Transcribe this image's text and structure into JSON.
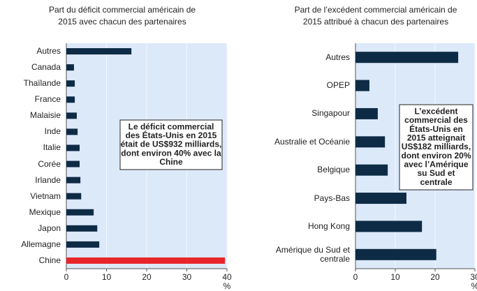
{
  "chart_data": [
    {
      "type": "bar",
      "orientation": "horizontal",
      "title": [
        "Part du déficit commercial américain de",
        "2015 avec chacun des partenaires"
      ],
      "categories": [
        "Autres",
        "Canada",
        "Thaïlande",
        "France",
        "Malaisie",
        "Inde",
        "Italie",
        "Corée",
        "Irlande",
        "Vietnam",
        "Mexique",
        "Japon",
        "Allemagne",
        "Chine"
      ],
      "values": [
        16.2,
        1.9,
        2.1,
        2.1,
        2.6,
        2.8,
        3.3,
        3.3,
        3.5,
        3.7,
        6.8,
        7.7,
        8.2,
        39.5
      ],
      "colors": [
        "#0d2b45",
        "#0d2b45",
        "#0d2b45",
        "#0d2b45",
        "#0d2b45",
        "#0d2b45",
        "#0d2b45",
        "#0d2b45",
        "#0d2b45",
        "#0d2b45",
        "#0d2b45",
        "#0d2b45",
        "#0d2b45",
        "#e8262a"
      ],
      "xlim": [
        0,
        40
      ],
      "xticks": [
        0,
        10,
        20,
        30,
        40
      ],
      "x_unit": "%",
      "grid": true,
      "annotation": [
        "Le déficit commercial",
        "des États-Unis en 2015",
        "était de US$932 milliards,",
        "dont environ 40% avec la",
        "Chine"
      ]
    },
    {
      "type": "bar",
      "orientation": "horizontal",
      "title": [
        "Part de l’excédent commercial américain de",
        "2015 attribué à chacun des partenaires"
      ],
      "categories": [
        "Autres",
        "OPEP",
        "Singapour",
        "Australie et Océanie",
        "Belgique",
        "Pays-Bas",
        "Hong Kong",
        "Amérique du Sud et centrale"
      ],
      "values": [
        25.8,
        3.5,
        5.6,
        7.4,
        8.1,
        12.8,
        16.7,
        20.3
      ],
      "colors": [
        "#0d2b45",
        "#0d2b45",
        "#0d2b45",
        "#0d2b45",
        "#0d2b45",
        "#0d2b45",
        "#0d2b45",
        "#0d2b45"
      ],
      "xlim": [
        0,
        30
      ],
      "xticks": [
        0,
        10,
        20,
        30
      ],
      "x_unit": "%",
      "grid": true,
      "annotation": [
        "L’excédent",
        "commercial des",
        "États-Unis en",
        "2015 atteignait",
        "US$182 milliards,",
        "dont environ 20%",
        "avec l’Amérique",
        "su Sud et",
        "centrale"
      ]
    }
  ]
}
